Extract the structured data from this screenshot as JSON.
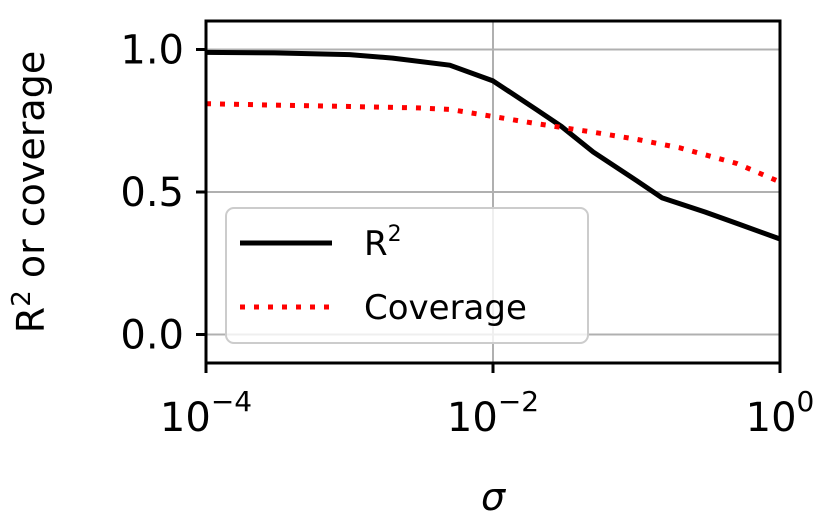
{
  "chart_data": {
    "type": "line",
    "xscale": "log",
    "xlim": [
      0.0001,
      1
    ],
    "ylim": [
      -0.1,
      1.1
    ],
    "grid": true,
    "xlabel": "σ",
    "ylabel": "R² or coverage",
    "x_ticks": [
      {
        "value": 0.0001,
        "base": "10",
        "exp": "−4"
      },
      {
        "value": 0.01,
        "base": "10",
        "exp": "−2"
      },
      {
        "value": 1,
        "base": "10",
        "exp": "0"
      }
    ],
    "y_ticks": [
      {
        "value": 0.0,
        "label": "0.0"
      },
      {
        "value": 0.5,
        "label": "0.5"
      },
      {
        "value": 1.0,
        "label": "1.0"
      }
    ],
    "legend_position": "lower-left",
    "series": [
      {
        "name": "R²",
        "legend_base": "R",
        "legend_sup": "2",
        "color": "#000000",
        "style": "solid",
        "points": [
          [
            0.0001,
            0.99
          ],
          [
            0.0003,
            0.988
          ],
          [
            0.001,
            0.982
          ],
          [
            0.002,
            0.97
          ],
          [
            0.005,
            0.945
          ],
          [
            0.01,
            0.89
          ],
          [
            0.02,
            0.79
          ],
          [
            0.03,
            0.73
          ],
          [
            0.05,
            0.64
          ],
          [
            0.1,
            0.54
          ],
          [
            0.15,
            0.48
          ],
          [
            0.3,
            0.43
          ],
          [
            0.5,
            0.39
          ],
          [
            1,
            0.335
          ]
        ]
      },
      {
        "name": "Coverage",
        "legend_base": "Coverage",
        "legend_sup": "",
        "color": "#ff0000",
        "style": "dotted",
        "points": [
          [
            0.0001,
            0.81
          ],
          [
            0.0003,
            0.805
          ],
          [
            0.001,
            0.8
          ],
          [
            0.003,
            0.795
          ],
          [
            0.005,
            0.79
          ],
          [
            0.01,
            0.765
          ],
          [
            0.02,
            0.74
          ],
          [
            0.05,
            0.71
          ],
          [
            0.1,
            0.685
          ],
          [
            0.2,
            0.655
          ],
          [
            0.5,
            0.6
          ],
          [
            1,
            0.535
          ]
        ]
      }
    ]
  }
}
